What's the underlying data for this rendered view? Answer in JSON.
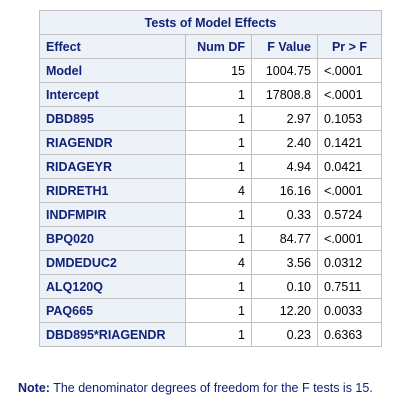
{
  "table": {
    "title": "Tests of Model Effects",
    "columns": [
      "Effect",
      "Num DF",
      "F Value",
      "Pr > F"
    ],
    "rows": [
      {
        "effect": "Model",
        "num_df": "15",
        "f_value": "1004.75",
        "pr_f": "<.0001"
      },
      {
        "effect": "Intercept",
        "num_df": "1",
        "f_value": "17808.8",
        "pr_f": "<.0001"
      },
      {
        "effect": "DBD895",
        "num_df": "1",
        "f_value": "2.97",
        "pr_f": "0.1053"
      },
      {
        "effect": "RIAGENDR",
        "num_df": "1",
        "f_value": "2.40",
        "pr_f": "0.1421"
      },
      {
        "effect": "RIDAGEYR",
        "num_df": "1",
        "f_value": "4.94",
        "pr_f": "0.0421"
      },
      {
        "effect": "RIDRETH1",
        "num_df": "4",
        "f_value": "16.16",
        "pr_f": "<.0001"
      },
      {
        "effect": "INDFMPIR",
        "num_df": "1",
        "f_value": "0.33",
        "pr_f": "0.5724"
      },
      {
        "effect": "BPQ020",
        "num_df": "1",
        "f_value": "84.77",
        "pr_f": "<.0001"
      },
      {
        "effect": "DMDEDUC2",
        "num_df": "4",
        "f_value": "3.56",
        "pr_f": "0.0312"
      },
      {
        "effect": "ALQ120Q",
        "num_df": "1",
        "f_value": "0.10",
        "pr_f": "0.7511"
      },
      {
        "effect": "PAQ665",
        "num_df": "1",
        "f_value": "12.20",
        "pr_f": "0.0033"
      },
      {
        "effect": "DBD895*RIAGENDR",
        "num_df": "1",
        "f_value": "0.23",
        "pr_f": "0.6363"
      }
    ]
  },
  "note": {
    "label": "Note:",
    "text": "The denominator degrees of freedom for the F tests is 15."
  },
  "colors": {
    "header_bg": "#edf2f9",
    "header_text": "#112277",
    "border": "#c1c1c1",
    "cell_text": "#000000"
  }
}
